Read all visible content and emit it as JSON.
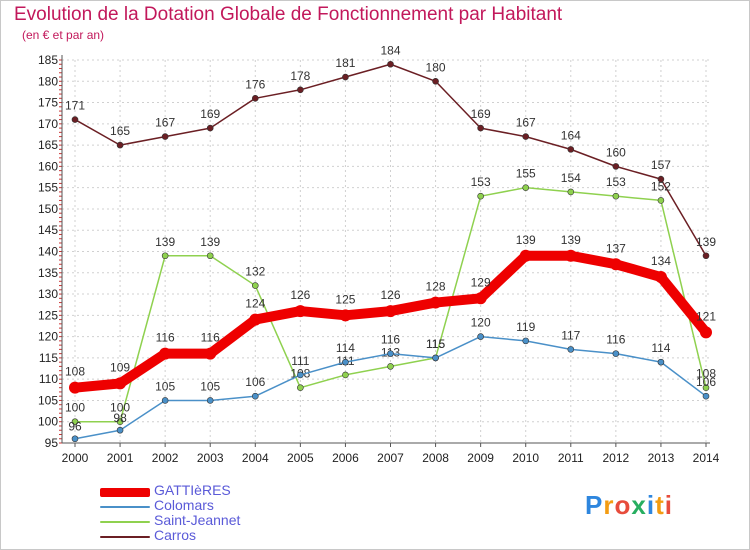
{
  "page": {
    "title": "Evolution de la Dotation Globale de Fonctionnement par Habitant",
    "subtitle": "(en € et par an)"
  },
  "logo": {
    "text": "Proxiti",
    "letters": [
      "P",
      "r",
      "o",
      "x",
      "i",
      "t",
      "i"
    ],
    "colors": [
      "#2e86de",
      "#f39c12",
      "#e74c3c",
      "#27ae60",
      "#2e86de",
      "#f39c12",
      "#e74c3c"
    ]
  },
  "colors": {
    "title": "#c2185b",
    "grid": "#d0d0d0",
    "axis": "#555555",
    "legend_text": "#5a5ad8"
  },
  "chart_data": {
    "type": "line",
    "title": "Evolution de la Dotation Globale de Fonctionnement par Habitant",
    "subtitle": "(en € et par an)",
    "xlabel": "",
    "ylabel": "",
    "ylim": [
      95,
      185
    ],
    "y_ticks": [
      95,
      100,
      105,
      110,
      115,
      120,
      125,
      130,
      135,
      140,
      145,
      150,
      155,
      160,
      165,
      170,
      175,
      180,
      185
    ],
    "categories": [
      "2000",
      "2001",
      "2002",
      "2003",
      "2004",
      "2005",
      "2006",
      "2007",
      "2008",
      "2009",
      "2010",
      "2011",
      "2012",
      "2013",
      "2014"
    ],
    "grid": true,
    "legend_position": "bottom-left",
    "series": [
      {
        "name": "Carros",
        "color": "#6b1f24",
        "emphasis": false,
        "values": [
          171,
          165,
          167,
          169,
          176,
          178,
          181,
          184,
          180,
          169,
          167,
          164,
          160,
          157,
          139
        ]
      },
      {
        "name": "Saint-Jeannet",
        "color": "#8fd14f",
        "emphasis": false,
        "values": [
          100,
          100,
          139,
          139,
          132,
          108,
          111,
          113,
          115,
          153,
          155,
          154,
          153,
          152,
          108
        ]
      },
      {
        "name": "Colomars",
        "color": "#4a90c8",
        "emphasis": false,
        "values": [
          96,
          98,
          105,
          105,
          106,
          111,
          114,
          116,
          115,
          120,
          119,
          117,
          116,
          114,
          106
        ]
      },
      {
        "name": "GATTIèRES",
        "color": "#ee0000",
        "emphasis": true,
        "values": [
          108,
          109,
          116,
          116,
          124,
          126,
          125,
          126,
          128,
          129,
          139,
          139,
          137,
          134,
          121
        ]
      }
    ],
    "legend_order": [
      "GATTIèRES",
      "Colomars",
      "Saint-Jeannet",
      "Carros"
    ]
  }
}
